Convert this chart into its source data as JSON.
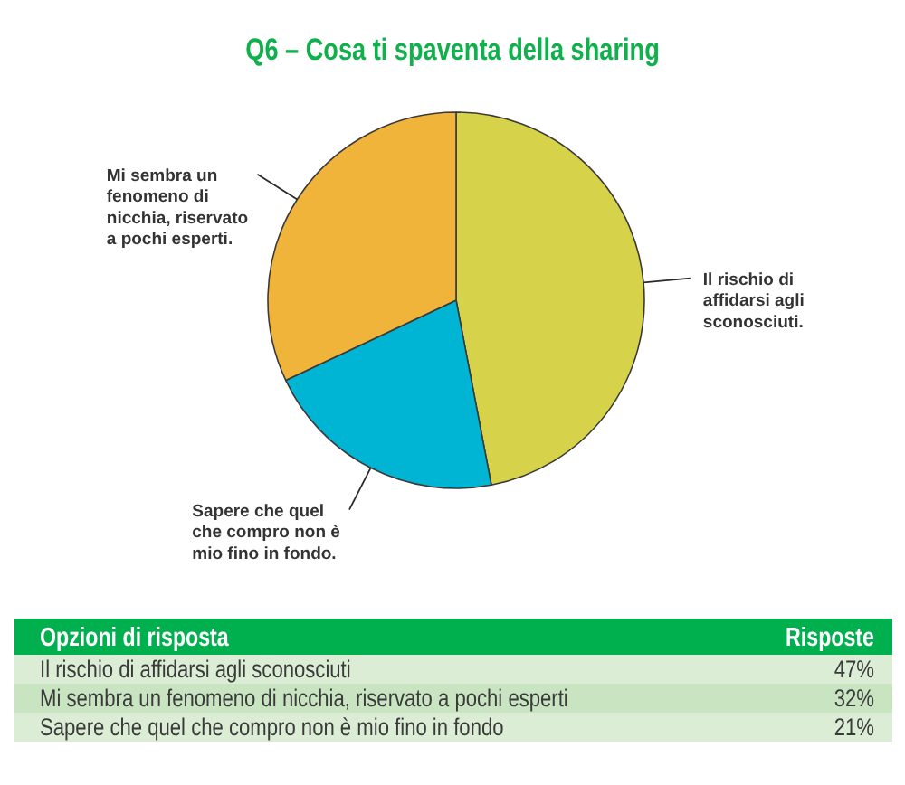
{
  "chart_data": [
    {
      "type": "pie",
      "title": "Q6 – Cosa ti spaventa della sharing",
      "categories": [
        "Il rischio di affidarsi agli sconosciuti.",
        "Sapere che quel che compro non è mio fino in fondo.",
        "Mi sembra un fenomeno di nicchia, riservato a pochi esperti."
      ],
      "values": [
        47,
        21,
        32
      ],
      "colors": [
        "#d6d24a",
        "#00b4d4",
        "#f0b43a"
      ]
    },
    {
      "type": "other",
      "xlabel": "Opzioni di risposta",
      "ylabel": "Risposte",
      "categories": [
        "Il rischio di affidarsi agli sconosciuti",
        "Mi sembra un fenomeno di nicchia, riservato a pochi esperti",
        "Sapere che quel che compro non è mio fino in fondo"
      ],
      "value_labels": [
        "47%",
        "32%",
        "21%"
      ]
    }
  ]
}
